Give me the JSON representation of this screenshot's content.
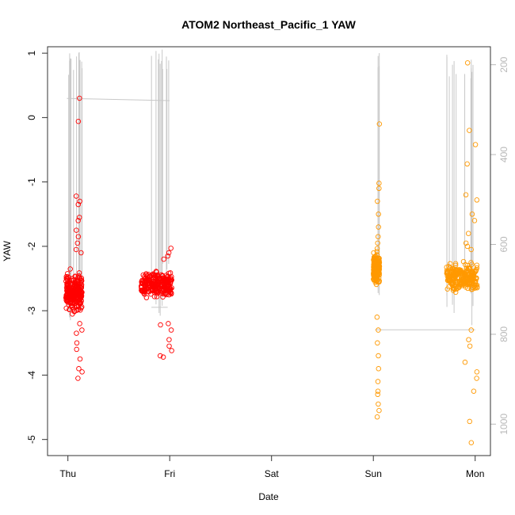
{
  "chart_data": {
    "type": "scatter",
    "title": "ATOM2 Northeast_Pacific_1 YAW",
    "xlabel": "Date",
    "ylabel": "YAW",
    "x_ticks": [
      "Thu",
      "Fri",
      "Sat",
      "Sun",
      "Mon"
    ],
    "xlim_days": [
      -0.2,
      4.15
    ],
    "ylim": [
      -5.25,
      1.1
    ],
    "y_ticks": [
      1,
      0,
      -1,
      -2,
      -3,
      -4,
      -5
    ],
    "y_tick_labels": [
      "1",
      "0",
      "-1",
      "-2",
      "-3",
      "-4",
      "-5"
    ],
    "secondary_y_ticks": [
      "200",
      "400",
      "600",
      "800",
      "1000"
    ],
    "secondary_y_values": [
      200,
      400,
      600,
      800,
      1000
    ],
    "secondary_ylim": [
      1070,
      160
    ],
    "colors": {
      "series1": "#ff0000",
      "series2": "#ff9900",
      "depth": "#c8c8c8"
    },
    "series": [
      {
        "clusters": [
          {
            "x_start": -0.02,
            "x_end": 0.14,
            "y_mean": -2.72,
            "y_spread": 0.22,
            "n": 240,
            "outliers": [
              0.3,
              -0.06,
              -1.22,
              -1.3,
              -1.35,
              -1.55,
              -1.6,
              -1.75,
              -1.85,
              -1.95,
              -3.2,
              -3.3,
              -3.5,
              -3.6,
              -3.75,
              -3.9,
              -3.95,
              -4.05,
              -3.35,
              -2.1,
              -2.05
            ]
          },
          {
            "x_start": 0.72,
            "x_end": 1.02,
            "y_mean": -2.6,
            "y_spread": 0.15,
            "n": 260,
            "outliers": [
              -2.1,
              -2.15,
              -2.2,
              -2.03,
              -3.22,
              -3.45,
              -3.55,
              -3.62,
              -3.7,
              -3.72,
              -3.3,
              -3.2
            ]
          }
        ]
      },
      {
        "clusters": [
          {
            "x_start": 3.0,
            "x_end": 3.06,
            "y_mean": -2.35,
            "y_spread": 0.2,
            "n": 160,
            "outliers": [
              -0.1,
              -1.02,
              -1.1,
              -1.3,
              -1.5,
              -1.7,
              -1.85,
              -1.95,
              -3.1,
              -3.3,
              -3.5,
              -3.7,
              -3.9,
              -4.1,
              -4.25,
              -4.3,
              -4.55,
              -4.65,
              -4.45
            ]
          },
          {
            "x_start": 3.72,
            "x_end": 4.02,
            "y_mean": -2.48,
            "y_spread": 0.16,
            "n": 260,
            "outliers": [
              -0.42,
              -0.72,
              0.85,
              -0.2,
              -1.2,
              -1.28,
              -1.5,
              -1.6,
              -1.8,
              -1.95,
              -2.0,
              -2.05,
              -3.3,
              -3.45,
              -3.55,
              -3.8,
              -3.95,
              -4.05,
              -4.25,
              -4.72,
              -5.05
            ]
          }
        ]
      }
    ]
  }
}
